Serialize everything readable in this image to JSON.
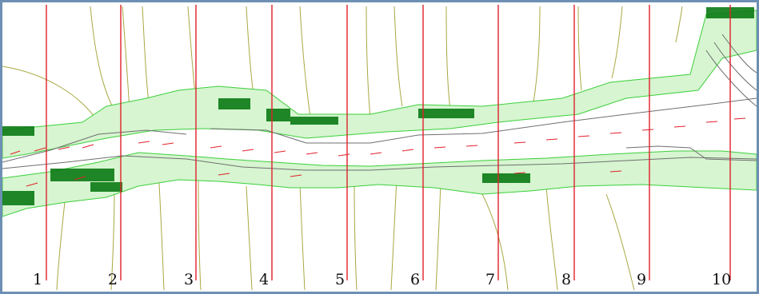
{
  "plot": {
    "section_labels": [
      "1",
      "2",
      "3",
      "4",
      "5",
      "6",
      "7",
      "8",
      "9",
      "10"
    ]
  },
  "colors": {
    "frame": "#6d8fb3",
    "section_line": "#e0202a",
    "wet_cell": "#3ccf3c",
    "dry_cell": "#0b7a14",
    "contour_outer": "#a8a842",
    "contour_inner": "#6f6f6f",
    "velocity_vector": "#e0202a"
  },
  "icons": [
    "section-line-icon"
  ]
}
